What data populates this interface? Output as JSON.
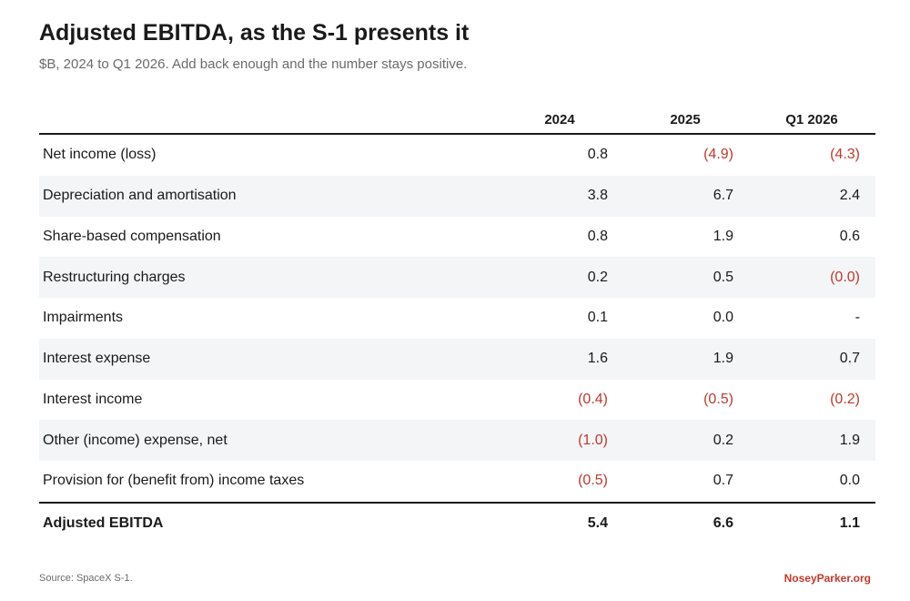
{
  "title": "Adjusted EBITDA, as the S-1 presents it",
  "subtitle": "$B, 2024 to Q1 2026. Add back enough and the number stays positive.",
  "columns": [
    "2024",
    "2025",
    "Q1 2026"
  ],
  "rows": [
    {
      "label": "Net income (loss)",
      "values": [
        "0.8",
        "(4.9)",
        "(4.3)"
      ]
    },
    {
      "label": "Depreciation and amortisation",
      "values": [
        "3.8",
        "6.7",
        "2.4"
      ]
    },
    {
      "label": "Share-based compensation",
      "values": [
        "0.8",
        "1.9",
        "0.6"
      ]
    },
    {
      "label": "Restructuring charges",
      "values": [
        "0.2",
        "0.5",
        "(0.0)"
      ]
    },
    {
      "label": "Impairments",
      "values": [
        "0.1",
        "0.0",
        "-"
      ]
    },
    {
      "label": "Interest expense",
      "values": [
        "1.6",
        "1.9",
        "0.7"
      ]
    },
    {
      "label": "Interest income",
      "values": [
        "(0.4)",
        "(0.5)",
        "(0.2)"
      ]
    },
    {
      "label": "Other (income) expense, net",
      "values": [
        "(1.0)",
        "0.2",
        "1.9"
      ]
    },
    {
      "label": "Provision for (benefit from) income taxes",
      "values": [
        "(0.5)",
        "0.7",
        "0.0"
      ]
    }
  ],
  "total": {
    "label": "Adjusted EBITDA",
    "values": [
      "5.4",
      "6.6",
      "1.1"
    ]
  },
  "footer": {
    "source": "Source: SpaceX S-1.",
    "brand": "NoseyParker.org"
  },
  "colors": {
    "negative": "#c0392b",
    "alt_row": "#f4f5f7",
    "brand": "#c0392b"
  }
}
